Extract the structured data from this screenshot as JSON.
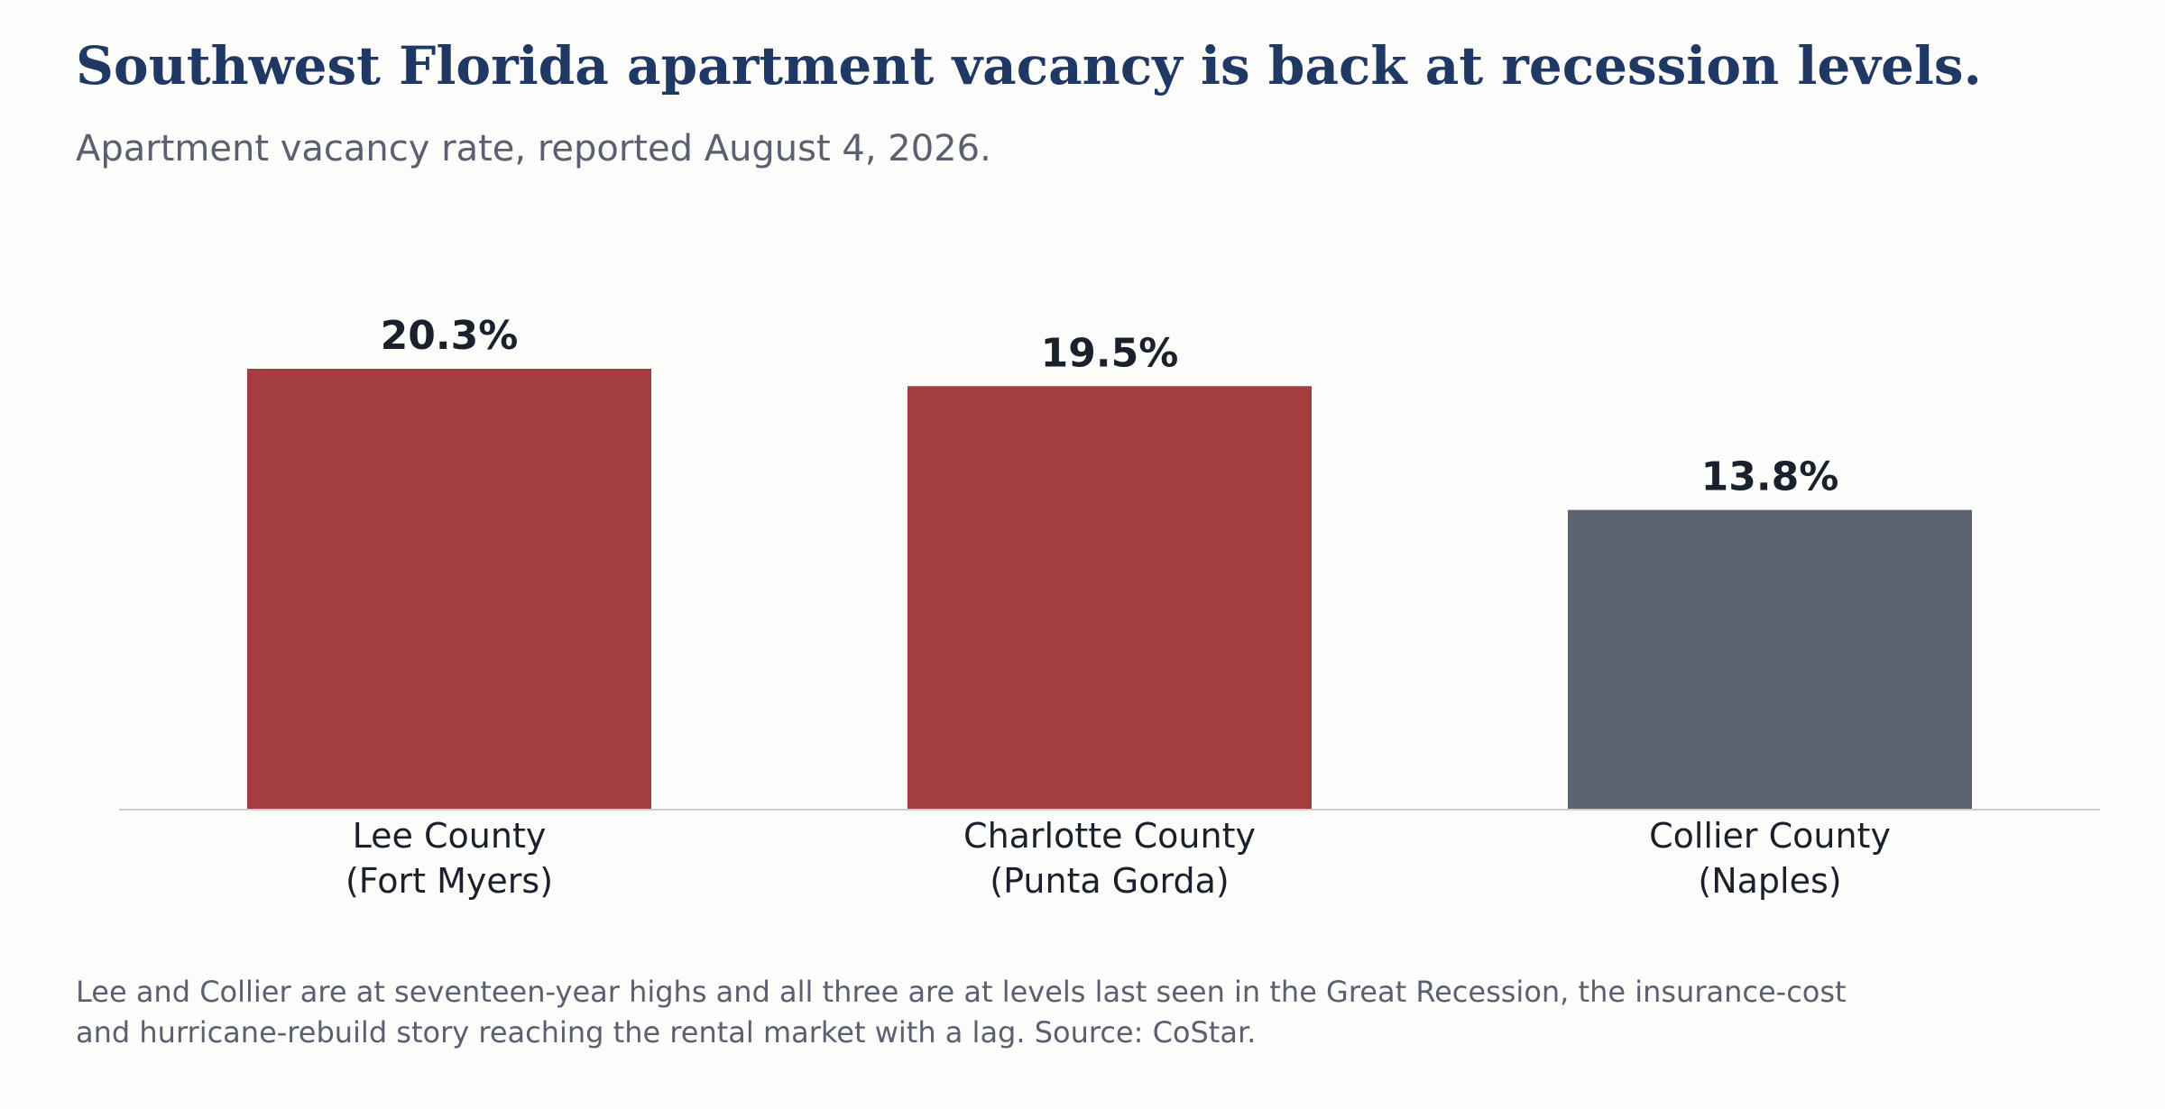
{
  "header": {
    "title": "Southwest Florida apartment vacancy is back at recession levels.",
    "subtitle": "Apartment vacancy rate, reported August 4, 2026."
  },
  "footnote": "Lee and Collier are at seventeen-year highs and all three are at levels last seen in the Great Recession, the insurance-cost and hurricane-rebuild story reaching the rental market with a lag. Source: CoStar.",
  "colors": {
    "highlight": "#a33d40",
    "neutral": "#5c6472",
    "title": "#1f3864",
    "muted_text": "#5a6070",
    "label_text": "#1a202c",
    "baseline": "#cccccc"
  },
  "chart_data": {
    "type": "bar",
    "categories": [
      [
        "Lee County",
        "(Fort Myers)"
      ],
      [
        "Charlotte County",
        "(Punta Gorda)"
      ],
      [
        "Collier County",
        "(Naples)"
      ]
    ],
    "values": [
      20.3,
      19.5,
      13.8
    ],
    "value_labels": [
      "20.3%",
      "19.5%",
      "13.8%"
    ],
    "bar_colors": [
      "#a33d40",
      "#a33d40",
      "#5c6472"
    ],
    "ylim": [
      0,
      20.3
    ],
    "unit": "%",
    "grid": false,
    "legend": "none"
  }
}
